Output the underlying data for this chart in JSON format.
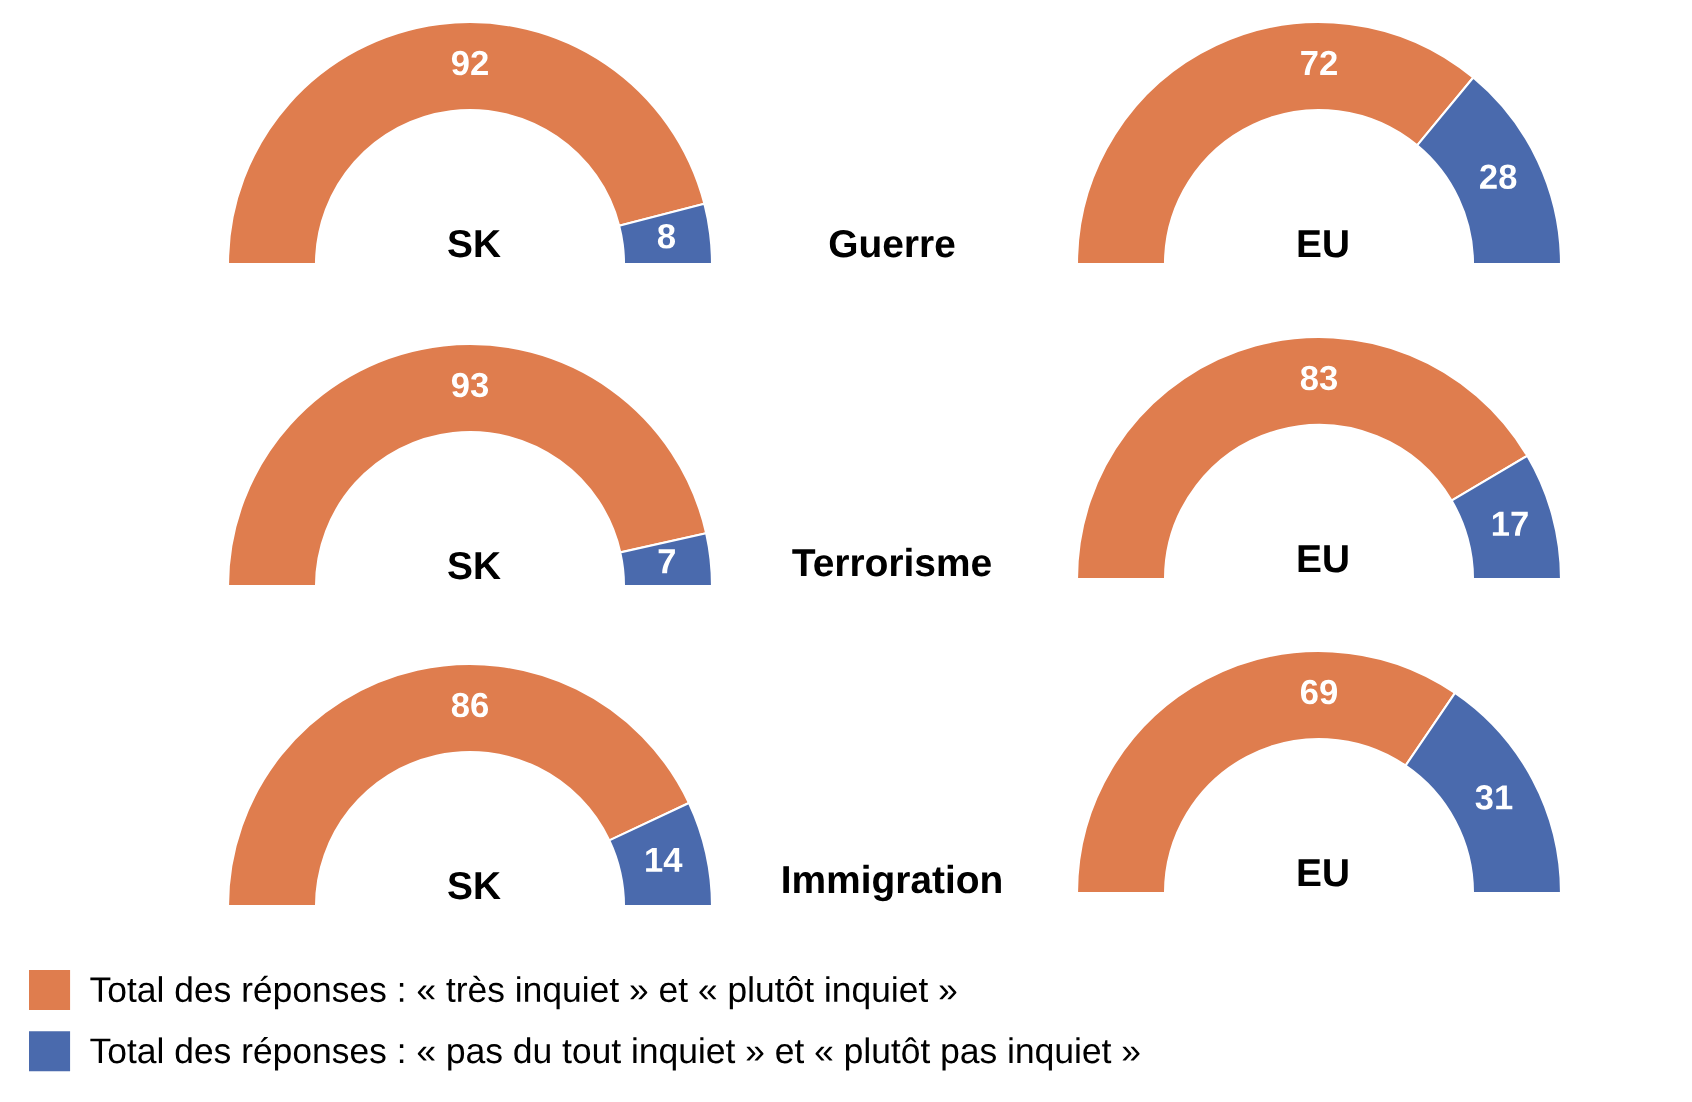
{
  "chart_data": [
    {
      "type": "donut",
      "title": "SK",
      "categories": [
        "Total des réponses : « très inquiet » et « plutôt inquiet »",
        "Total des réponses : « pas du tout inquiet » et « plutôt pas inquiet »"
      ],
      "values": [
        92,
        8
      ],
      "colors": [
        "#df7d4e",
        "#4a6aad"
      ],
      "data_labels": true,
      "legend": "bottom right"
    },
    {
      "type": "other",
      "title": "Guerre"
    },
    {
      "type": "donut",
      "title": "EU",
      "categories": [
        null,
        null
      ],
      "values": [
        72,
        28
      ],
      "colors": [
        "#df7d4e",
        "#4a6aad"
      ],
      "data_labels": true
    },
    {
      "type": "donut",
      "title": "SK",
      "categories": [
        null,
        null
      ],
      "values": [
        93,
        7
      ],
      "colors": [
        "#df7d4e",
        "#4a6aad"
      ],
      "data_labels": true
    },
    {
      "type": "other",
      "title": "Terrorisme"
    },
    {
      "type": "donut",
      "title": "EU",
      "categories": [
        null,
        null
      ],
      "values": [
        83,
        17
      ],
      "colors": [
        "#df7d4e",
        "#4a6aad"
      ],
      "data_labels": true
    },
    {
      "type": "donut",
      "title": "SK",
      "categories": [
        null,
        null
      ],
      "values": [
        86,
        14
      ],
      "colors": [
        "#df7d4e",
        "#4a6aad"
      ],
      "data_labels": true
    },
    {
      "type": "other",
      "title": "Immigration"
    },
    {
      "type": "donut",
      "title": "EU",
      "categories": [
        null,
        null
      ],
      "values": [
        69,
        31
      ],
      "colors": [
        "#df7d4e",
        "#4a6aad"
      ],
      "data_labels": true
    }
  ]
}
